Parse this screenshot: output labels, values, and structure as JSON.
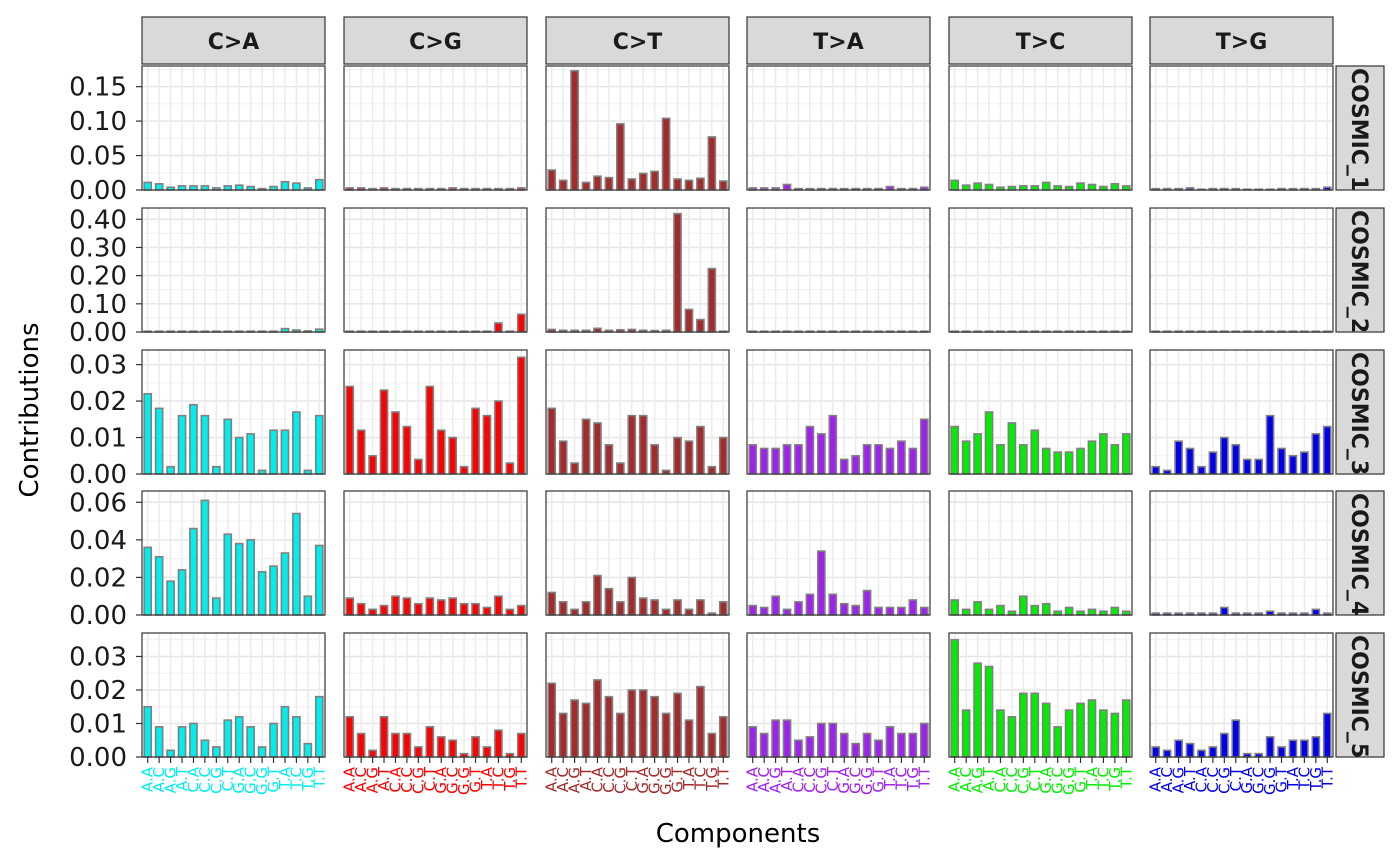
{
  "chart_data": {
    "type": "bar",
    "xlabel": "Components",
    "ylabel": "Contributions",
    "bar_outline_color": "#808080",
    "mutation_types": [
      {
        "label": "C>A",
        "color": "#00EEEE"
      },
      {
        "label": "C>G",
        "color": "#FF0000"
      },
      {
        "label": "C>T",
        "color": "#A52A2A"
      },
      {
        "label": "T>A",
        "color": "#A020F0"
      },
      {
        "label": "T>C",
        "color": "#00EE00"
      },
      {
        "label": "T>G",
        "color": "#0000EE"
      }
    ],
    "categories": [
      "A.A",
      "A.C",
      "A.G",
      "A.T",
      "C.A",
      "C.C",
      "C.G",
      "C.T",
      "G.A",
      "G.C",
      "G.G",
      "G.T",
      "T.A",
      "T.C",
      "T.G",
      "T.T"
    ],
    "x_tick_labels": [
      "A.A",
      "A.C",
      "A.G",
      "A.T",
      "C.A",
      "C.C",
      "C.G",
      "C.T",
      "G.A",
      "G.C",
      "G.G",
      "G.T",
      "T.A",
      "T.C",
      "T.G",
      "T.T"
    ],
    "signatures": [
      {
        "name": "COSMIC_1",
        "ylim": [
          0,
          0.18
        ],
        "yticks": [
          "0.00",
          "0.05",
          "0.10",
          "0.15"
        ],
        "ytick_values": [
          0,
          0.05,
          0.1,
          0.15
        ],
        "values": [
          [
            0.011,
            0.009,
            0.004,
            0.006,
            0.006,
            0.006,
            0.003,
            0.006,
            0.007,
            0.005,
            0.002,
            0.005,
            0.012,
            0.01,
            0.003,
            0.015
          ],
          [
            0.003,
            0.003,
            0.002,
            0.003,
            0.002,
            0.002,
            0.002,
            0.002,
            0.002,
            0.003,
            0.002,
            0.002,
            0.002,
            0.002,
            0.002,
            0.003
          ],
          [
            0.029,
            0.014,
            0.173,
            0.011,
            0.02,
            0.018,
            0.096,
            0.016,
            0.024,
            0.027,
            0.104,
            0.016,
            0.014,
            0.017,
            0.077,
            0.013
          ],
          [
            0.003,
            0.003,
            0.003,
            0.008,
            0.002,
            0.002,
            0.002,
            0.002,
            0.002,
            0.002,
            0.002,
            0.002,
            0.005,
            0.002,
            0.002,
            0.004
          ],
          [
            0.014,
            0.007,
            0.01,
            0.008,
            0.004,
            0.005,
            0.006,
            0.006,
            0.011,
            0.006,
            0.005,
            0.01,
            0.008,
            0.005,
            0.009,
            0.006
          ],
          [
            0.002,
            0.002,
            0.002,
            0.003,
            0.001,
            0.002,
            0.002,
            0.002,
            0.001,
            0.001,
            0.001,
            0.002,
            0.002,
            0.002,
            0.002,
            0.004
          ]
        ]
      },
      {
        "name": "COSMIC_2",
        "ylim": [
          0,
          0.44
        ],
        "yticks": [
          "0.00",
          "0.10",
          "0.20",
          "0.30",
          "0.40"
        ],
        "ytick_values": [
          0,
          0.1,
          0.2,
          0.3,
          0.4
        ],
        "values": [
          [
            0.002,
            0.002,
            0.002,
            0.002,
            0.002,
            0.002,
            0.002,
            0.002,
            0.002,
            0.002,
            0.002,
            0.002,
            0.012,
            0.007,
            0.004,
            0.01
          ],
          [
            0.002,
            0.002,
            0.002,
            0.002,
            0.002,
            0.002,
            0.002,
            0.002,
            0.002,
            0.002,
            0.002,
            0.002,
            0.002,
            0.032,
            0.002,
            0.063
          ],
          [
            0.009,
            0.006,
            0.006,
            0.006,
            0.013,
            0.006,
            0.008,
            0.009,
            0.006,
            0.005,
            0.006,
            0.42,
            0.08,
            0.044,
            0.225,
            0.002
          ],
          [
            0.001,
            0.001,
            0.001,
            0.001,
            0.001,
            0.001,
            0.001,
            0.001,
            0.001,
            0.001,
            0.001,
            0.001,
            0.001,
            0.001,
            0.001,
            0.001
          ],
          [
            0.001,
            0.001,
            0.001,
            0.001,
            0.001,
            0.001,
            0.001,
            0.001,
            0.001,
            0.001,
            0.001,
            0.001,
            0.001,
            0.001,
            0.001,
            0.001
          ],
          [
            0.001,
            0.001,
            0.001,
            0.001,
            0.001,
            0.001,
            0.001,
            0.001,
            0.001,
            0.001,
            0.001,
            0.001,
            0.001,
            0.001,
            0.001,
            0.001
          ]
        ]
      },
      {
        "name": "COSMIC_3",
        "ylim": [
          0,
          0.034
        ],
        "yticks": [
          "0.00",
          "0.01",
          "0.02",
          "0.03"
        ],
        "ytick_values": [
          0,
          0.01,
          0.02,
          0.03
        ],
        "values": [
          [
            0.022,
            0.018,
            0.002,
            0.016,
            0.019,
            0.016,
            0.002,
            0.015,
            0.01,
            0.011,
            0.001,
            0.012,
            0.012,
            0.017,
            0.001,
            0.016
          ],
          [
            0.024,
            0.012,
            0.005,
            0.023,
            0.017,
            0.013,
            0.004,
            0.024,
            0.012,
            0.01,
            0.002,
            0.018,
            0.016,
            0.02,
            0.003,
            0.032
          ],
          [
            0.018,
            0.009,
            0.003,
            0.015,
            0.014,
            0.008,
            0.003,
            0.016,
            0.016,
            0.008,
            0.001,
            0.01,
            0.009,
            0.013,
            0.002,
            0.01
          ],
          [
            0.008,
            0.007,
            0.007,
            0.008,
            0.008,
            0.013,
            0.011,
            0.016,
            0.004,
            0.005,
            0.008,
            0.008,
            0.007,
            0.009,
            0.007,
            0.015
          ],
          [
            0.013,
            0.009,
            0.011,
            0.017,
            0.008,
            0.014,
            0.008,
            0.012,
            0.007,
            0.006,
            0.006,
            0.007,
            0.009,
            0.011,
            0.008,
            0.011
          ],
          [
            0.002,
            0.001,
            0.009,
            0.007,
            0.002,
            0.006,
            0.01,
            0.008,
            0.004,
            0.004,
            0.016,
            0.007,
            0.005,
            0.006,
            0.011,
            0.013
          ]
        ]
      },
      {
        "name": "COSMIC_4",
        "ylim": [
          0,
          0.066
        ],
        "yticks": [
          "0.00",
          "0.02",
          "0.04",
          "0.06"
        ],
        "ytick_values": [
          0,
          0.02,
          0.04,
          0.06
        ],
        "values": [
          [
            0.036,
            0.031,
            0.018,
            0.024,
            0.046,
            0.061,
            0.009,
            0.043,
            0.038,
            0.04,
            0.023,
            0.026,
            0.033,
            0.054,
            0.01,
            0.037
          ],
          [
            0.009,
            0.006,
            0.003,
            0.005,
            0.01,
            0.009,
            0.006,
            0.009,
            0.008,
            0.009,
            0.006,
            0.006,
            0.004,
            0.01,
            0.003,
            0.005
          ],
          [
            0.012,
            0.007,
            0.003,
            0.007,
            0.021,
            0.014,
            0.007,
            0.02,
            0.009,
            0.008,
            0.003,
            0.008,
            0.003,
            0.008,
            0.001,
            0.007
          ],
          [
            0.005,
            0.004,
            0.01,
            0.003,
            0.007,
            0.011,
            0.034,
            0.011,
            0.006,
            0.005,
            0.013,
            0.004,
            0.004,
            0.004,
            0.008,
            0.004
          ],
          [
            0.008,
            0.003,
            0.007,
            0.003,
            0.005,
            0.002,
            0.01,
            0.005,
            0.006,
            0.002,
            0.004,
            0.002,
            0.003,
            0.002,
            0.004,
            0.002
          ],
          [
            0.001,
            0.001,
            0.001,
            0.001,
            0.001,
            0.001,
            0.004,
            0.001,
            0.001,
            0.001,
            0.002,
            0.001,
            0.001,
            0.001,
            0.003,
            0.001
          ]
        ]
      },
      {
        "name": "COSMIC_5",
        "ylim": [
          0,
          0.037
        ],
        "yticks": [
          "0.00",
          "0.01",
          "0.02",
          "0.03"
        ],
        "ytick_values": [
          0,
          0.01,
          0.02,
          0.03
        ],
        "values": [
          [
            0.015,
            0.009,
            0.002,
            0.009,
            0.01,
            0.005,
            0.003,
            0.011,
            0.012,
            0.009,
            0.003,
            0.01,
            0.015,
            0.012,
            0.004,
            0.018
          ],
          [
            0.012,
            0.007,
            0.002,
            0.012,
            0.007,
            0.007,
            0.003,
            0.009,
            0.006,
            0.005,
            0.001,
            0.006,
            0.003,
            0.008,
            0.001,
            0.007
          ],
          [
            0.022,
            0.013,
            0.017,
            0.016,
            0.023,
            0.018,
            0.013,
            0.02,
            0.02,
            0.018,
            0.013,
            0.019,
            0.011,
            0.021,
            0.007,
            0.012
          ],
          [
            0.009,
            0.007,
            0.011,
            0.011,
            0.005,
            0.006,
            0.01,
            0.01,
            0.007,
            0.004,
            0.007,
            0.005,
            0.009,
            0.007,
            0.007,
            0.01
          ],
          [
            0.035,
            0.014,
            0.028,
            0.027,
            0.014,
            0.012,
            0.019,
            0.019,
            0.016,
            0.009,
            0.014,
            0.016,
            0.017,
            0.014,
            0.013,
            0.017
          ],
          [
            0.003,
            0.002,
            0.005,
            0.004,
            0.002,
            0.003,
            0.007,
            0.011,
            0.001,
            0.001,
            0.006,
            0.003,
            0.005,
            0.005,
            0.006,
            0.013
          ]
        ]
      }
    ],
    "grid": true,
    "legend": "none"
  }
}
